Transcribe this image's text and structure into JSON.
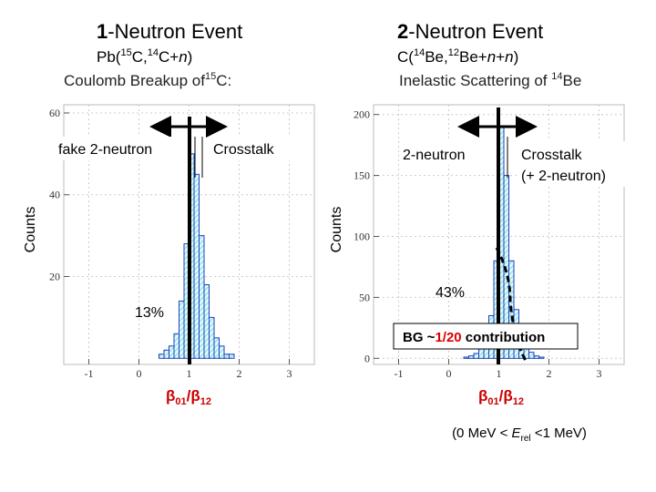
{
  "slide": {
    "left": {
      "heading": [
        "1",
        "-Neutron Event"
      ],
      "reaction": [
        "Pb(",
        "15",
        "C,",
        "14",
        "C+",
        "n",
        ")"
      ],
      "subtitle": [
        "Coulomb Breakup of",
        "15",
        "C:"
      ]
    },
    "right": {
      "heading": [
        "2",
        "-Neutron Event"
      ],
      "reaction": [
        "C(",
        "14",
        "Be,",
        "12",
        "Be+",
        "n",
        "+",
        "n",
        ")"
      ],
      "subtitle": [
        "Inelastic Scattering of ",
        "14",
        "Be"
      ]
    },
    "bg_note": [
      "BG ~",
      "1/20",
      " contribution"
    ],
    "energy_note": [
      "(0 MeV < ",
      "E",
      "rel",
      " <1 MeV)"
    ]
  },
  "chart_data": [
    {
      "type": "histogram",
      "ylabel": "Counts",
      "xlabel": [
        "β",
        "01",
        "/β",
        "12"
      ],
      "bins": [
        0.4,
        0.5,
        0.6,
        0.7,
        0.8,
        0.9,
        1.0,
        1.1,
        1.2,
        1.3,
        1.4,
        1.5,
        1.6,
        1.7,
        1.8,
        1.9
      ],
      "counts": [
        1,
        2,
        3,
        6,
        14,
        28,
        50,
        45,
        30,
        18,
        10,
        5,
        3,
        1,
        1
      ],
      "color": "#1f3fbf",
      "xlim": [
        -1.5,
        3.5
      ],
      "ylim": [
        -1.5,
        62
      ],
      "xticks": [
        -1,
        0,
        1,
        2,
        3
      ],
      "yticks": [
        20,
        40,
        60
      ],
      "grid": true,
      "annotations": [
        "fake 2-neutron",
        "Crosstalk",
        "13%"
      ]
    },
    {
      "type": "histogram",
      "ylabel": "Counts",
      "xlabel": [
        "β",
        "01",
        "/β",
        "12"
      ],
      "bins": [
        0.3,
        0.4,
        0.5,
        0.6,
        0.7,
        0.8,
        0.9,
        1.0,
        1.1,
        1.2,
        1.3,
        1.4,
        1.5,
        1.6,
        1.7,
        1.8,
        1.9
      ],
      "counts": [
        1,
        2,
        4,
        8,
        15,
        35,
        80,
        190,
        150,
        80,
        40,
        20,
        10,
        5,
        2,
        1
      ],
      "color": "#1f3fbf",
      "xlim": [
        -1.5,
        3.5
      ],
      "ylim": [
        -5,
        208
      ],
      "xticks": [
        -1,
        0,
        1,
        2,
        3
      ],
      "yticks": [
        0,
        50,
        100,
        150,
        200
      ],
      "grid": true,
      "annotations": [
        "2-neutron",
        "Crosstalk",
        "(+ 2-neutron)",
        "43%"
      ]
    }
  ]
}
